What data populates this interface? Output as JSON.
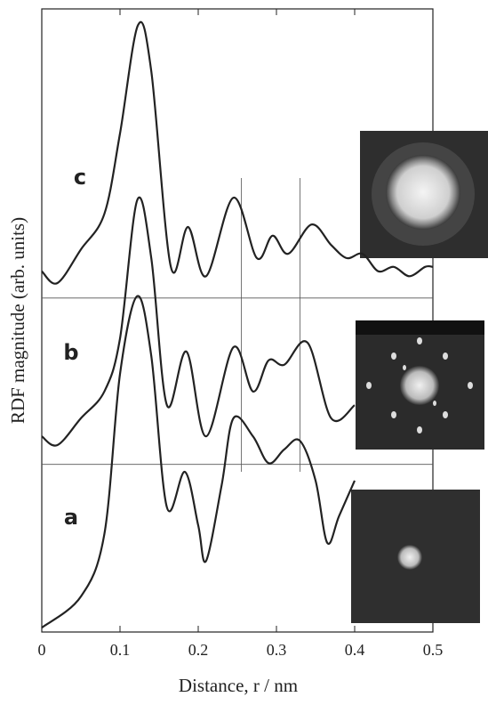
{
  "chart_data": {
    "type": "line",
    "xlabel": "Distance, r / nm",
    "ylabel": "RDF magnitude (arb. units)",
    "xlim": [
      0,
      0.5
    ],
    "xticks": [
      0,
      0.1,
      0.2,
      0.3,
      0.4,
      0.5
    ],
    "ylim": [
      0,
      100
    ],
    "color": "#222222",
    "series": [
      {
        "name": "a",
        "color": "#222222",
        "x": [
          0,
          0.05,
          0.08,
          0.1,
          0.122,
          0.14,
          0.16,
          0.183,
          0.2,
          0.21,
          0.23,
          0.245,
          0.27,
          0.29,
          0.31,
          0.33,
          0.35,
          0.365,
          0.38,
          0.4
        ],
        "values": [
          0.7,
          5.7,
          15.7,
          41.4,
          53.9,
          44.3,
          20,
          25.7,
          17.1,
          11.4,
          23.6,
          34.3,
          31.4,
          27.1,
          29.3,
          30.7,
          24.3,
          14.3,
          18.6,
          24.3
        ]
      },
      {
        "name": "b",
        "color": "#222222",
        "x": [
          0,
          0.02,
          0.05,
          0.08,
          0.1,
          0.122,
          0.14,
          0.16,
          0.185,
          0.21,
          0.245,
          0.27,
          0.29,
          0.31,
          0.34,
          0.37,
          0.4
        ],
        "values": [
          31.4,
          30,
          34.3,
          38.6,
          47.1,
          69.3,
          60,
          36.4,
          45,
          31.4,
          45.7,
          38.6,
          43.6,
          42.9,
          46.4,
          34.3,
          36.4
        ]
      },
      {
        "name": "c",
        "color": "#222222",
        "x": [
          0,
          0.02,
          0.05,
          0.08,
          0.1,
          0.123,
          0.14,
          0.165,
          0.187,
          0.21,
          0.245,
          0.275,
          0.295,
          0.315,
          0.345,
          0.37,
          0.39,
          0.41,
          0.43,
          0.45,
          0.47,
          0.49,
          0.5
        ],
        "values": [
          57.9,
          56,
          61.4,
          67.1,
          80,
          97.4,
          90,
          58.6,
          65,
          57.1,
          69.7,
          60,
          63.6,
          60.7,
          65.4,
          62.1,
          60,
          60.7,
          57.9,
          58.6,
          57.1,
          58.6,
          58.6
        ]
      }
    ],
    "hlines": [
      26.9,
      53.6
    ],
    "vlines": [
      0.255,
      0.33
    ]
  }
}
